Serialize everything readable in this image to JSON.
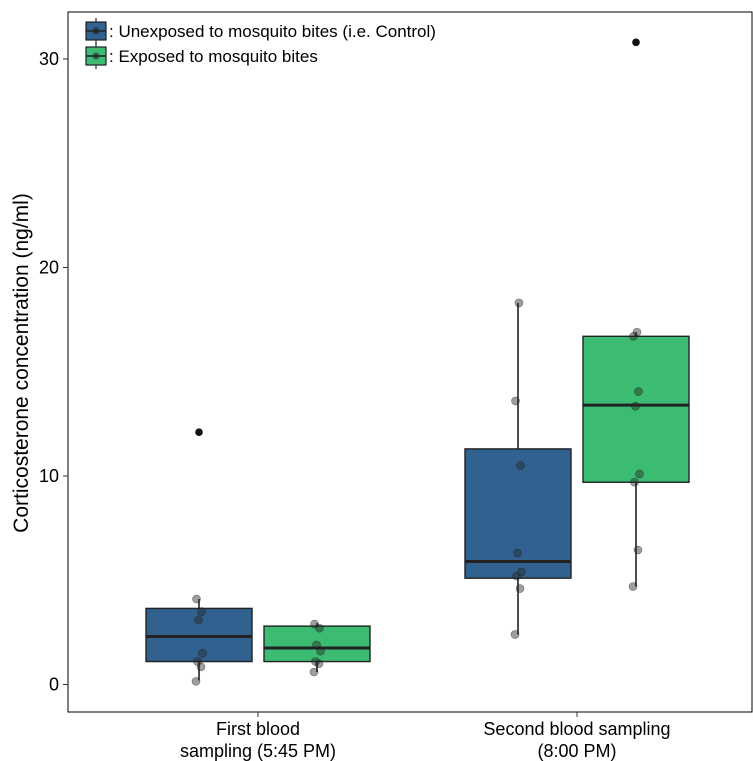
{
  "chart_data": {
    "type": "box",
    "ylabel": "Corticosterone concentration (ng/ml)",
    "xlabel": "",
    "ylim": [
      -1.3,
      32
    ],
    "yticks": [
      0,
      10,
      20,
      30
    ],
    "grid": false,
    "legend_position": "top-left",
    "categories": [
      [
        "First blood",
        "sampling (5:45 PM)"
      ],
      [
        "Second blood sampling",
        "(8:00 PM)"
      ]
    ],
    "series": [
      {
        "name": ": Unexposed to mosquito bites (i.e. Control)",
        "color": "#31618e",
        "boxes": [
          {
            "min": 0.2,
            "q1": 1.1,
            "median": 2.3,
            "q3": 3.65,
            "max": 4.1,
            "outliers": [
              12.1
            ],
            "points": [
              0.15,
              0.85,
              1.1,
              1.5,
              3.1,
              3.5,
              4.1
            ]
          },
          {
            "min": 2.4,
            "q1": 5.1,
            "median": 5.9,
            "q3": 11.3,
            "max": 18.3,
            "outliers": [],
            "points": [
              2.4,
              4.6,
              5.2,
              5.4,
              6.3,
              10.5,
              13.6,
              18.3
            ]
          }
        ]
      },
      {
        "name": ": Exposed to mosquito bites",
        "color": "#3cbc72",
        "boxes": [
          {
            "min": 0.6,
            "q1": 1.1,
            "median": 1.75,
            "q3": 2.8,
            "max": 2.95,
            "outliers": [],
            "points": [
              0.6,
              1.0,
              1.1,
              1.6,
              1.9,
              2.7,
              2.9
            ]
          },
          {
            "min": 4.7,
            "q1": 9.7,
            "median": 13.4,
            "q3": 16.7,
            "max": 16.9,
            "outliers": [
              30.8
            ],
            "points": [
              4.7,
              6.45,
              9.7,
              10.1,
              13.35,
              14.05,
              16.7,
              16.9
            ]
          }
        ]
      }
    ]
  }
}
